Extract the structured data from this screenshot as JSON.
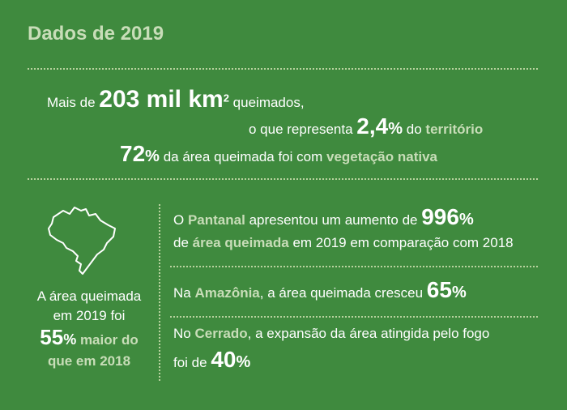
{
  "title": "Dados de 2019",
  "top": {
    "l1_pre": "Mais de",
    "l1_num": "203 mil km",
    "l1_sup": "2",
    "l1_post": "queimados,",
    "l2_pre": "o que representa",
    "l2_num": "2,4",
    "l2_pct": "%",
    "l2_mid": "do",
    "l2_hl": "território",
    "l3_num": "72",
    "l3_pct": "%",
    "l3_mid": "da área queimada foi com",
    "l3_hl": "vegetação nativa"
  },
  "left": {
    "t1": "A área queimada",
    "t2": "em 2019 foi",
    "num": "55",
    "pct": "%",
    "hl1": "maior do",
    "hl2": "que em 2018"
  },
  "right": {
    "p1_a": "O",
    "p1_hl": "Pantanal",
    "p1_b": "apresentou um aumento de",
    "p1_num": "996",
    "p1_pct": "%",
    "p2_hl": "área queimada",
    "p2_pre": "de",
    "p2_b": "em 2019 em comparação com 2018",
    "p3_a": "Na",
    "p3_hl": "Amazônia",
    "p3_b": ", a área queimada cresceu",
    "p3_num": "65",
    "p3_pct": "%",
    "p4_a": "No",
    "p4_hl": "Cerrado",
    "p4_b": ", a expansão da área atingida pelo fogo",
    "p5_a": "foi de",
    "p5_num": "40",
    "p5_pct": "%"
  },
  "colors": {
    "background": "#3f8a3e",
    "highlight": "#c8ddb8",
    "text": "#ffffff"
  },
  "icons": {
    "map": "brazil-map-icon"
  }
}
